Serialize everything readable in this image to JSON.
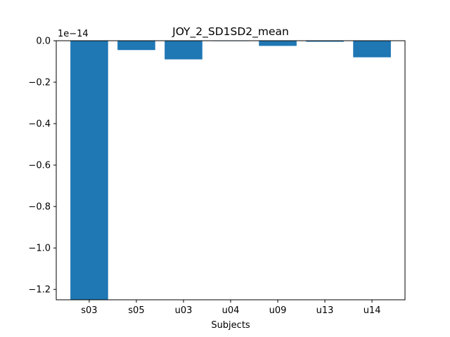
{
  "chart_data": {
    "type": "bar",
    "title": "JOY_2_SD1SD2_mean",
    "xlabel": "Subjects",
    "ylabel": "",
    "scale_label": "1e−14",
    "categories": [
      "s03",
      "s05",
      "u03",
      "u04",
      "u09",
      "u13",
      "u14"
    ],
    "values": [
      -1.25,
      -0.045,
      -0.09,
      0.0,
      -0.025,
      -0.005,
      -0.08
    ],
    "ylim": [
      -1.25,
      0.0
    ],
    "yticks": [
      0.0,
      -0.2,
      -0.4,
      -0.6,
      -0.8,
      -1.0,
      -1.2
    ],
    "ytick_labels": [
      "0.0",
      "−0.2",
      "−0.4",
      "−0.6",
      "−0.8",
      "−1.0",
      "−1.2"
    ],
    "grid": false,
    "bar_color": "#1f77b4"
  }
}
